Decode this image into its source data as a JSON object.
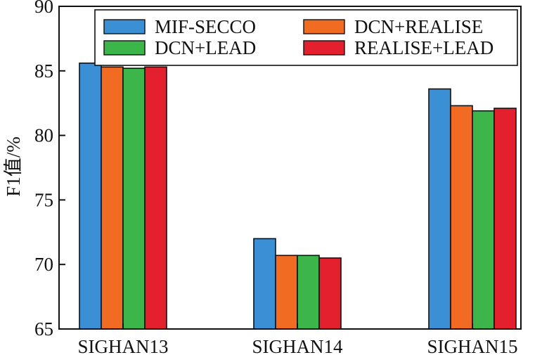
{
  "chart_data": {
    "type": "bar",
    "title": "",
    "xlabel": "",
    "ylabel": "F1值/%",
    "ylim": [
      65,
      90
    ],
    "yticks": [
      65,
      70,
      75,
      80,
      85,
      90
    ],
    "grid": false,
    "legend_position": "top-right",
    "categories": [
      "SIGHAN13",
      "SIGHAN14",
      "SIGHAN15"
    ],
    "series": [
      {
        "name": "MIF-SECCO",
        "color": "#3B8FD4",
        "values": [
          85.6,
          72.0,
          83.6
        ]
      },
      {
        "name": "DCN+REALISE",
        "color": "#F26B22",
        "values": [
          85.3,
          70.7,
          82.3
        ]
      },
      {
        "name": "DCN+LEAD",
        "color": "#3CB54A",
        "values": [
          85.2,
          70.7,
          81.9
        ]
      },
      {
        "name": "REALISE+LEAD",
        "color": "#E5202E",
        "values": [
          85.3,
          70.5,
          82.1
        ]
      }
    ]
  }
}
